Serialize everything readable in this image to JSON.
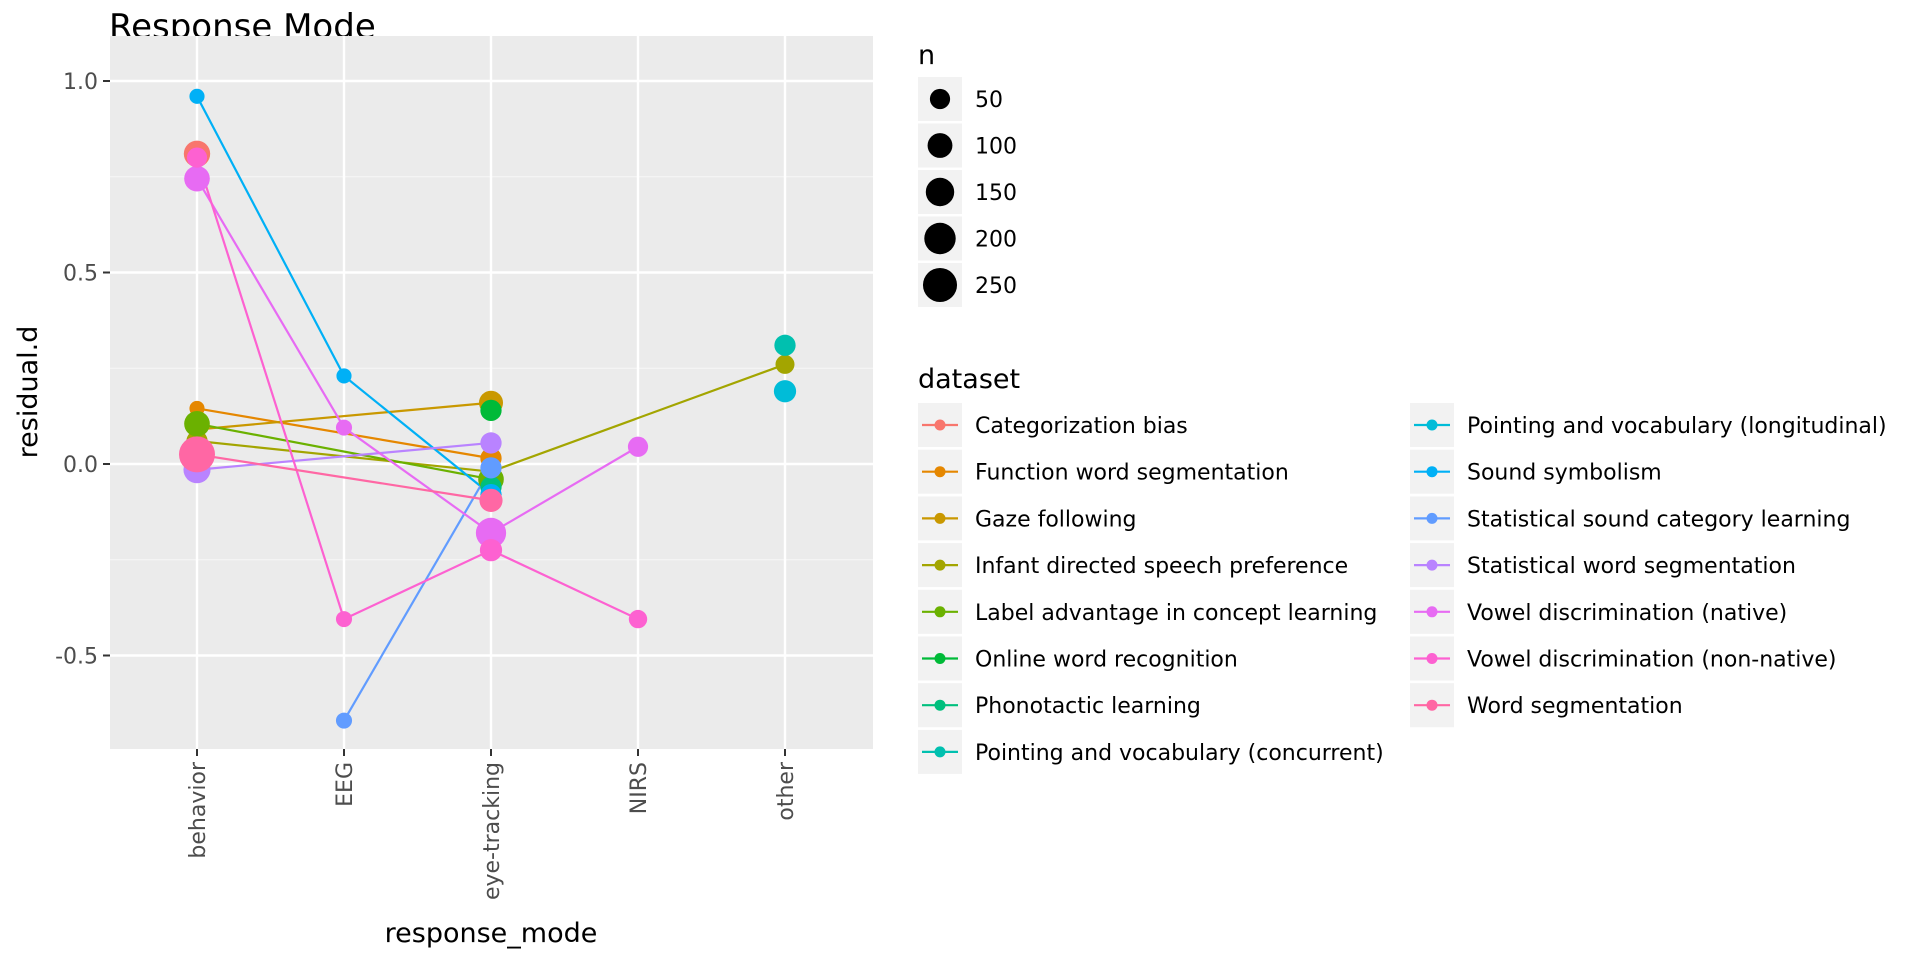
{
  "chart_data": {
    "type": "scatter",
    "title": "Response Mode",
    "xlabel": "response_mode",
    "ylabel": "residual.d",
    "categories": [
      "behavior",
      "EEG",
      "eye-tracking",
      "NIRS",
      "other"
    ],
    "ylim": [
      -0.75,
      1.04
    ],
    "yticks": [
      -0.5,
      0.0,
      0.5,
      1.0
    ],
    "ytick_labels": [
      "-0.5",
      "0.0",
      "0.5",
      "1.0"
    ],
    "grid": true,
    "legend_position": "right",
    "size_legend": {
      "title": "n",
      "values": [
        50,
        100,
        150,
        200,
        250
      ],
      "labels": [
        "50",
        "100",
        "150",
        "200",
        "250"
      ]
    },
    "color_legend_title": "dataset",
    "series": [
      {
        "name": "Categorization bias",
        "color": "#F8766D",
        "points": [
          {
            "x": "behavior",
            "y": 0.81,
            "n": 120
          }
        ]
      },
      {
        "name": "Function word segmentation",
        "color": "#E58700",
        "points": [
          {
            "x": "behavior",
            "y": 0.145,
            "n": 15
          },
          {
            "x": "eye-tracking",
            "y": 0.015,
            "n": 60
          }
        ]
      },
      {
        "name": "Gaze following",
        "color": "#C99800",
        "points": [
          {
            "x": "behavior",
            "y": 0.09,
            "n": 20
          },
          {
            "x": "eye-tracking",
            "y": 0.16,
            "n": 90
          }
        ]
      },
      {
        "name": "Infant directed speech preference",
        "color": "#A3A500",
        "points": [
          {
            "x": "behavior",
            "y": 0.06,
            "n": 60
          },
          {
            "x": "eye-tracking",
            "y": -0.02,
            "n": 40
          },
          {
            "x": "other",
            "y": 0.26,
            "n": 40
          }
        ]
      },
      {
        "name": "Label advantage in concept learning",
        "color": "#6BB100",
        "points": [
          {
            "x": "behavior",
            "y": 0.105,
            "n": 110
          },
          {
            "x": "eye-tracking",
            "y": -0.04,
            "n": 110
          }
        ]
      },
      {
        "name": "Online word recognition",
        "color": "#00BA38",
        "points": [
          {
            "x": "eye-tracking",
            "y": 0.14,
            "n": 60
          }
        ]
      },
      {
        "name": "Phonotactic learning",
        "color": "#00BF7D",
        "points": [
          {
            "x": "eye-tracking",
            "y": -0.06,
            "n": 60
          }
        ]
      },
      {
        "name": "Pointing and vocabulary (concurrent)",
        "color": "#00C0AF",
        "points": [
          {
            "x": "other",
            "y": 0.31,
            "n": 60
          }
        ]
      },
      {
        "name": "Pointing and vocabulary (longitudinal)",
        "color": "#00BCD8",
        "points": [
          {
            "x": "other",
            "y": 0.19,
            "n": 70
          }
        ]
      },
      {
        "name": "Sound symbolism",
        "color": "#00B0F6",
        "points": [
          {
            "x": "behavior",
            "y": 0.96,
            "n": 15
          },
          {
            "x": "EEG",
            "y": 0.23,
            "n": 15
          },
          {
            "x": "eye-tracking",
            "y": -0.08,
            "n": 60
          }
        ]
      },
      {
        "name": "Statistical sound category learning",
        "color": "#619CFF",
        "points": [
          {
            "x": "EEG",
            "y": -0.67,
            "n": 20
          },
          {
            "x": "eye-tracking",
            "y": -0.01,
            "n": 60
          }
        ]
      },
      {
        "name": "Statistical word segmentation",
        "color": "#B983FF",
        "points": [
          {
            "x": "behavior",
            "y": -0.015,
            "n": 130
          },
          {
            "x": "eye-tracking",
            "y": 0.055,
            "n": 60
          }
        ]
      },
      {
        "name": "Vowel discrimination (native)",
        "color": "#E76BF3",
        "points": [
          {
            "x": "behavior",
            "y": 0.745,
            "n": 110
          },
          {
            "x": "EEG",
            "y": 0.095,
            "n": 20
          },
          {
            "x": "eye-tracking",
            "y": -0.18,
            "n": 180
          },
          {
            "x": "NIRS",
            "y": 0.045,
            "n": 50
          }
        ]
      },
      {
        "name": "Vowel discrimination (non-native)",
        "color": "#FD61D1",
        "points": [
          {
            "x": "behavior",
            "y": 0.8,
            "n": 50
          },
          {
            "x": "EEG",
            "y": -0.405,
            "n": 20
          },
          {
            "x": "eye-tracking",
            "y": -0.225,
            "n": 70
          },
          {
            "x": "NIRS",
            "y": -0.405,
            "n": 35
          }
        ]
      },
      {
        "name": "Word segmentation",
        "color": "#FF67A4",
        "points": [
          {
            "x": "behavior",
            "y": 0.025,
            "n": 290
          },
          {
            "x": "eye-tracking",
            "y": -0.095,
            "n": 80
          }
        ]
      }
    ]
  }
}
